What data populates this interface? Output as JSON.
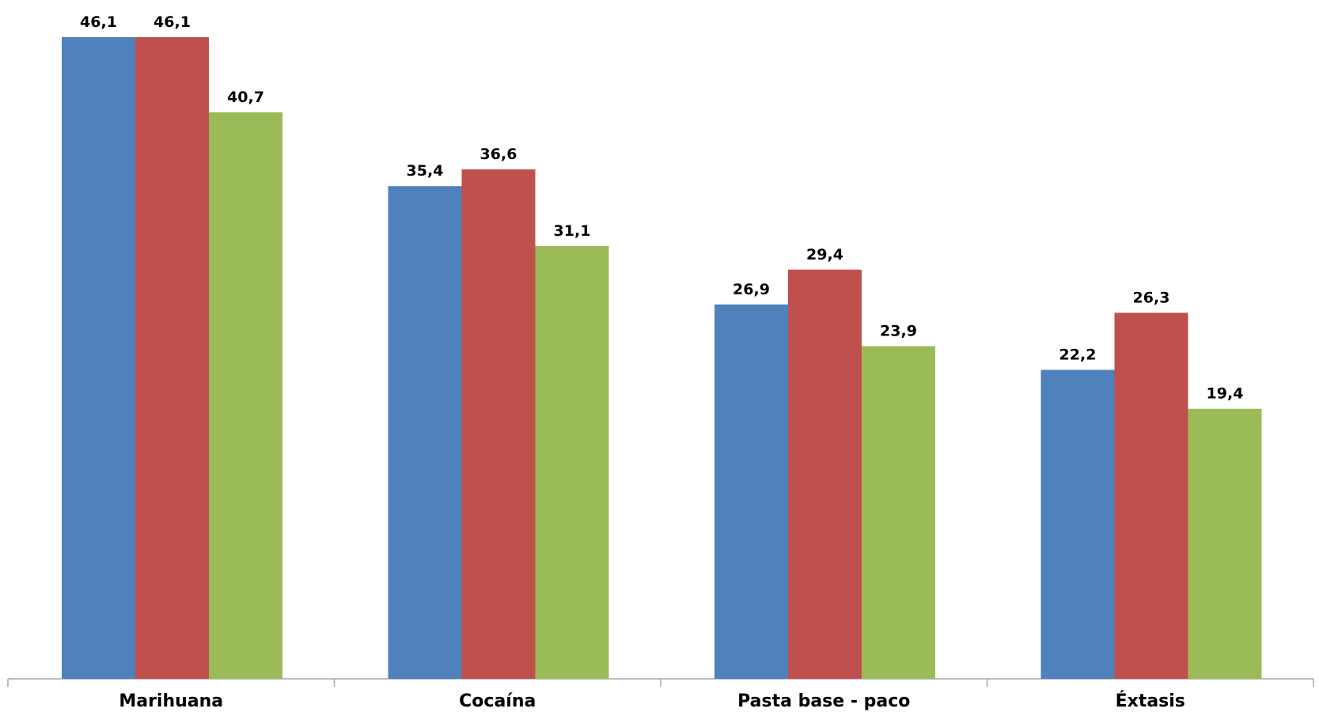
{
  "chart_data": {
    "type": "bar",
    "categories": [
      "Marihuana",
      "Cocaína",
      "Pasta base - paco",
      "Éxtasis"
    ],
    "series": [
      {
        "values": [
          46.1,
          35.4,
          26.9,
          22.2
        ],
        "labels": [
          "46,1",
          "35,4",
          "26,9",
          "22,2"
        ],
        "color": "#4F81BD"
      },
      {
        "values": [
          46.1,
          36.6,
          29.4,
          26.3
        ],
        "labels": [
          "46,1",
          "36,6",
          "29,4",
          "26,3"
        ],
        "color": "#C0504D"
      },
      {
        "values": [
          40.7,
          31.1,
          23.9,
          19.4
        ],
        "labels": [
          "40,7",
          "31,1",
          "23,9",
          "19,4"
        ],
        "color": "#9BBB59"
      }
    ],
    "ylim": [
      0,
      46.1
    ],
    "grid": false,
    "legend": "none",
    "axis_color": "#A6A6A6"
  }
}
